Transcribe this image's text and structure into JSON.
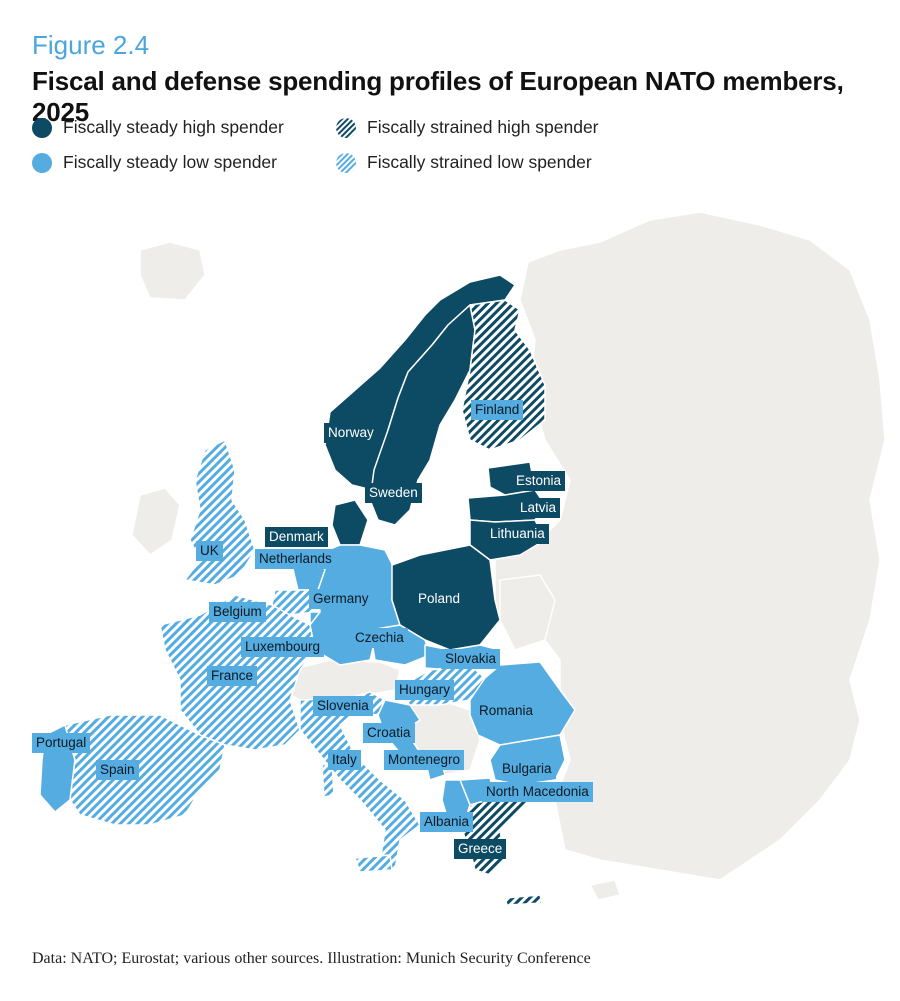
{
  "figure_number": "Figure 2.4",
  "title": "Fiscal and defense spending profiles of European NATO members, 2025",
  "colors": {
    "steady_high": "#0d4a63",
    "steady_low": "#55ace0",
    "strained": "#ffffff",
    "non_member": "#efedea",
    "border": "#ffffff",
    "figure_number": "#4aa6dd"
  },
  "legend": [
    {
      "label": "Fiscally steady high spender",
      "category": "steady_high"
    },
    {
      "label": "Fiscally strained high spender",
      "category": "strained_high"
    },
    {
      "label": "Fiscally steady low spender",
      "category": "steady_low"
    },
    {
      "label": "Fiscally strained low spender",
      "category": "strained_low"
    }
  ],
  "countries": [
    {
      "name": "Norway",
      "category": "steady_high"
    },
    {
      "name": "Finland",
      "category": "strained_high"
    },
    {
      "name": "Sweden",
      "category": "steady_high"
    },
    {
      "name": "Estonia",
      "category": "steady_high"
    },
    {
      "name": "Latvia",
      "category": "steady_high"
    },
    {
      "name": "Lithuania",
      "category": "steady_high"
    },
    {
      "name": "Denmark",
      "category": "steady_high"
    },
    {
      "name": "UK",
      "category": "strained_low"
    },
    {
      "name": "Netherlands",
      "category": "steady_low"
    },
    {
      "name": "Germany",
      "category": "steady_low"
    },
    {
      "name": "Poland",
      "category": "steady_high"
    },
    {
      "name": "Belgium",
      "category": "strained_low"
    },
    {
      "name": "Czechia",
      "category": "steady_low"
    },
    {
      "name": "Luxembourg",
      "category": "steady_low"
    },
    {
      "name": "Slovakia",
      "category": "steady_low"
    },
    {
      "name": "France",
      "category": "strained_low"
    },
    {
      "name": "Hungary",
      "category": "strained_low"
    },
    {
      "name": "Slovenia",
      "category": "strained_low"
    },
    {
      "name": "Romania",
      "category": "steady_low"
    },
    {
      "name": "Croatia",
      "category": "steady_low"
    },
    {
      "name": "Portugal",
      "category": "steady_low"
    },
    {
      "name": "Italy",
      "category": "strained_low"
    },
    {
      "name": "Montenegro",
      "category": "steady_low"
    },
    {
      "name": "Spain",
      "category": "strained_low"
    },
    {
      "name": "Bulgaria",
      "category": "steady_low"
    },
    {
      "name": "North Macedonia",
      "category": "steady_low"
    },
    {
      "name": "Albania",
      "category": "steady_low"
    },
    {
      "name": "Greece",
      "category": "strained_high"
    }
  ],
  "source": "Data: NATO; Eurostat; various other sources. Illustration: Munich Security Conference"
}
